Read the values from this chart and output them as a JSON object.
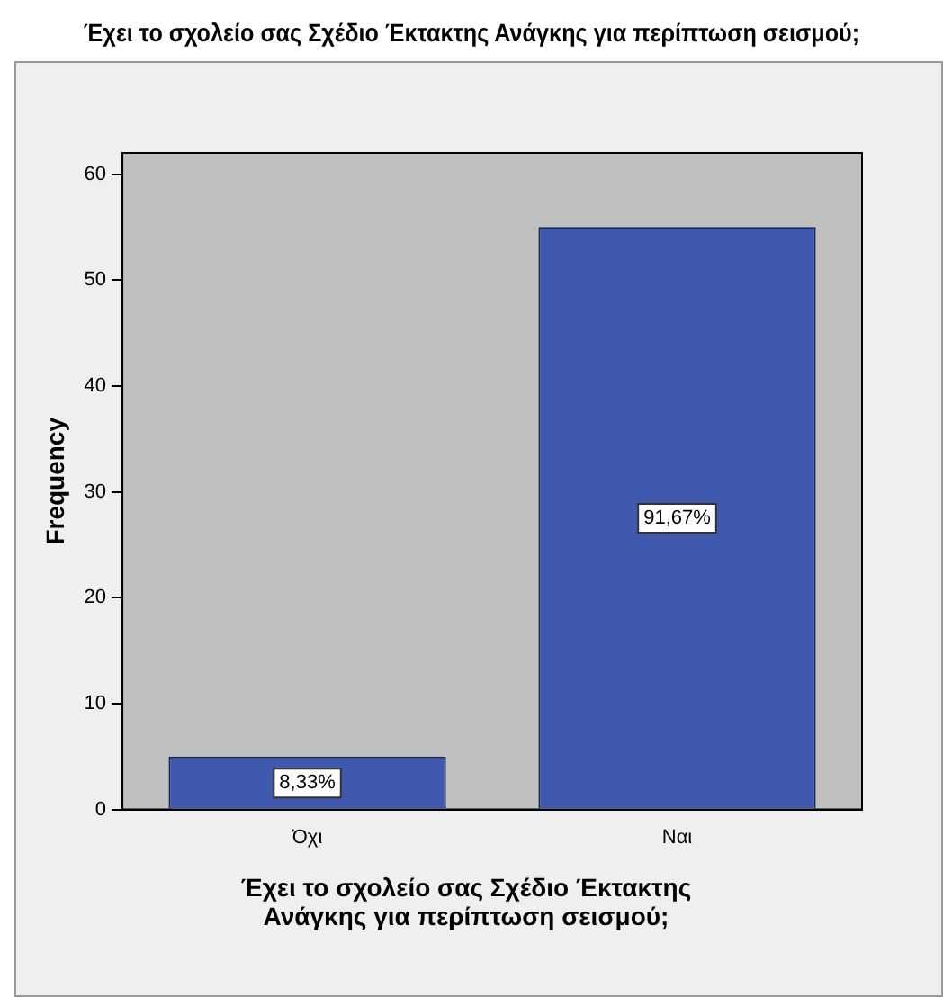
{
  "chart_data": {
    "type": "bar",
    "title": "Έχει το σχολείο σας Σχέδιο Έκτακτης Ανάγκης για περίπτωση σεισμού;",
    "xlabel": "Έχει το σχολείο σας Σχέδιο Έκτακτης Ανάγκης για περίπτωση σεισμού;",
    "ylabel": "Frequency",
    "categories": [
      "Όχι",
      "Ναι"
    ],
    "values": [
      5,
      55
    ],
    "color": "#3e59ad",
    "annotations": [
      {
        "text": "8,33%",
        "x": "Όχι",
        "y": 2.5
      },
      {
        "text": "91,67%",
        "x": "Ναι",
        "y": 27.5
      }
    ],
    "ylim": [
      0,
      62
    ],
    "yticks": [
      0,
      10,
      20,
      30,
      40,
      50,
      60
    ],
    "grid": false,
    "legend": false
  }
}
